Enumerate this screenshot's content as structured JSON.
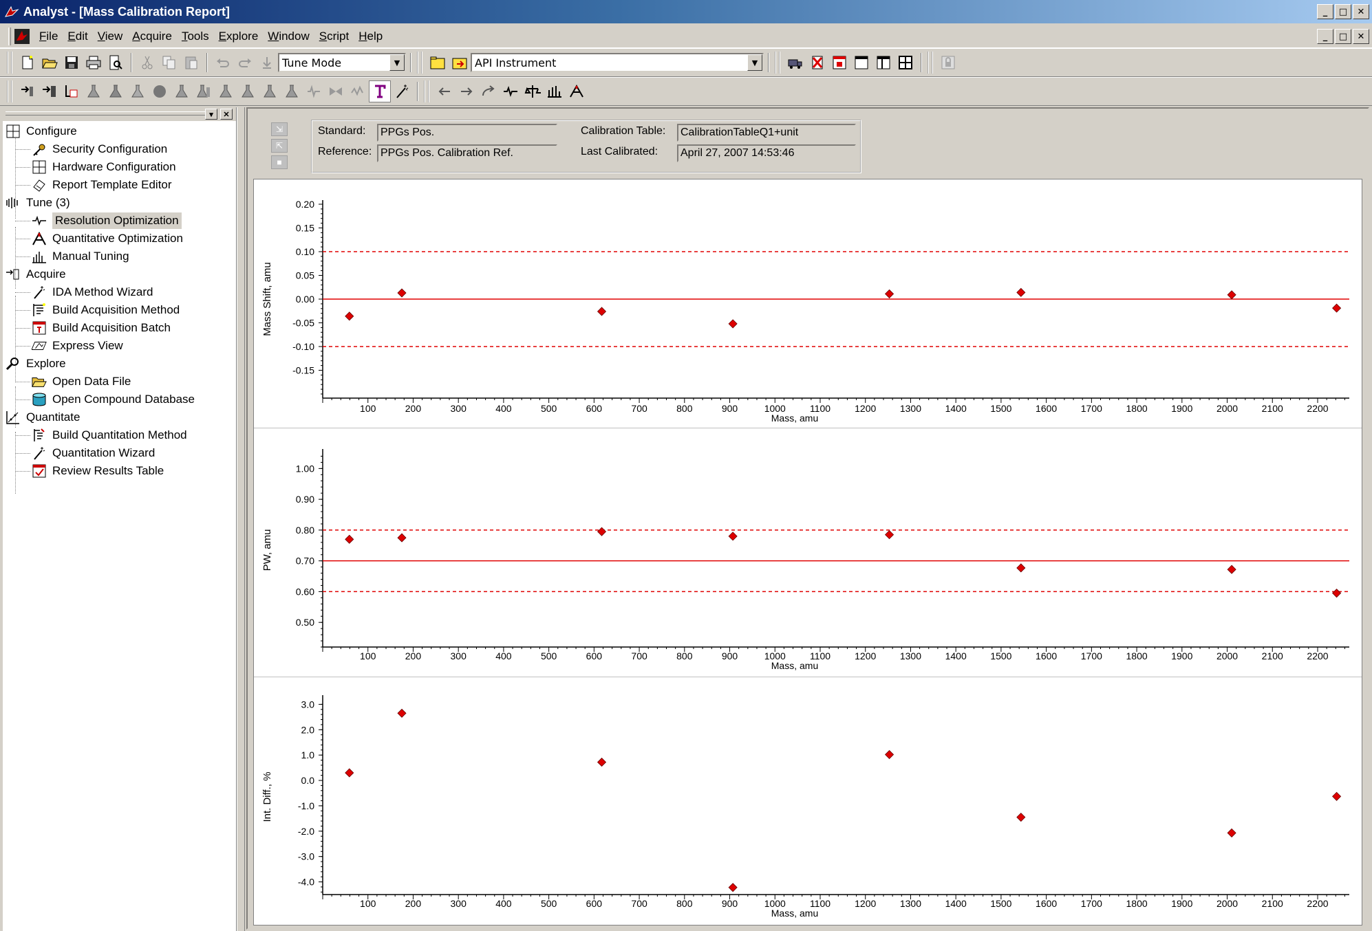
{
  "window": {
    "title": "Analyst - [Mass Calibration Report]",
    "minimize": "_",
    "restore": "□",
    "close": "✕"
  },
  "menu": [
    "File",
    "Edit",
    "View",
    "Acquire",
    "Tools",
    "Explore",
    "Window",
    "Script",
    "Help"
  ],
  "toolbar": {
    "mode_value": "Tune Mode",
    "instrument_value": "API Instrument"
  },
  "tree": {
    "configure": "Configure",
    "security_configuration": "Security Configuration",
    "hardware_configuration": "Hardware Configuration",
    "report_template_editor": "Report Template Editor",
    "tune": "Tune  (3)",
    "resolution_optimization": "Resolution Optimization",
    "quantitative_optimization": "Quantitative Optimization",
    "manual_tuning": "Manual Tuning",
    "acquire": "Acquire",
    "ida_method_wizard": "IDA Method Wizard",
    "build_acquisition_method": "Build Acquisition Method",
    "build_acquisition_batch": "Build Acquisition Batch",
    "express_view": "Express View",
    "explore": "Explore",
    "open_data_file": "Open Data File",
    "open_compound_database": "Open Compound Database",
    "quantitate": "Quantitate",
    "build_quantitation_method": "Build Quantitation Method",
    "quantitation_wizard": "Quantitation Wizard",
    "review_results_table": "Review Results Table"
  },
  "report_info": {
    "standard_label": "Standard:",
    "standard_value": "PPGs Pos.",
    "reference_label": "Reference:",
    "reference_value": "PPGs Pos. Calibration Ref.",
    "calibration_table_label": "Calibration Table:",
    "calibration_table_value": "CalibrationTableQ1+unit",
    "last_calibrated_label": "Last Calibrated:",
    "last_calibrated_value": "April 27, 2007 14:53:46"
  },
  "colors": {
    "marker": "#dd0000",
    "reference_line": "#e00000",
    "title_bar_start": "#0a246a"
  },
  "chart_data": [
    {
      "type": "scatter",
      "xlabel": "Mass, amu",
      "ylabel": "Mass Shift, amu",
      "xlim": [
        0,
        2270
      ],
      "ylim": [
        -0.2,
        0.2
      ],
      "xticks": [
        100,
        200,
        300,
        400,
        500,
        600,
        700,
        800,
        900,
        1000,
        1100,
        1200,
        1300,
        1400,
        1500,
        1600,
        1700,
        1800,
        1900,
        2000,
        2100,
        2200
      ],
      "yticks": [
        -0.15,
        -0.1,
        -0.05,
        0.0,
        0.05,
        0.1,
        0.15,
        0.2
      ],
      "ytick_labels": [
        "-0.15",
        "-0.10",
        "-0.05",
        "0.00",
        "0.05",
        "0.10",
        "0.15",
        "0.20"
      ],
      "reference_line": 0.0,
      "limit_lines": [
        0.1,
        -0.1
      ],
      "x": [
        59,
        175,
        617,
        907,
        1253,
        1544,
        2010,
        2242
      ],
      "y": [
        -0.036,
        0.013,
        -0.026,
        -0.052,
        0.011,
        0.014,
        0.009,
        -0.019
      ]
    },
    {
      "type": "scatter",
      "xlabel": "Mass, amu",
      "ylabel": "PW, amu",
      "xlim": [
        0,
        2270
      ],
      "ylim": [
        0.42,
        1.05
      ],
      "xticks": [
        100,
        200,
        300,
        400,
        500,
        600,
        700,
        800,
        900,
        1000,
        1100,
        1200,
        1300,
        1400,
        1500,
        1600,
        1700,
        1800,
        1900,
        2000,
        2100,
        2200
      ],
      "yticks": [
        0.5,
        0.6,
        0.7,
        0.8,
        0.9,
        1.0
      ],
      "ytick_labels": [
        "0.50",
        "0.60",
        "0.70",
        "0.80",
        "0.90",
        "1.00"
      ],
      "reference_line": 0.7,
      "limit_lines": [
        0.8,
        0.6
      ],
      "x": [
        59,
        175,
        617,
        907,
        1253,
        1544,
        2010,
        2242
      ],
      "y": [
        0.77,
        0.775,
        0.795,
        0.78,
        0.785,
        0.677,
        0.672,
        0.595
      ]
    },
    {
      "type": "scatter",
      "xlabel": "Mass, amu",
      "ylabel": "Int. Diff., %",
      "xlim": [
        0,
        2270
      ],
      "ylim": [
        -4.5,
        3.2
      ],
      "xticks": [
        100,
        200,
        300,
        400,
        500,
        600,
        700,
        800,
        900,
        1000,
        1100,
        1200,
        1300,
        1400,
        1500,
        1600,
        1700,
        1800,
        1900,
        2000,
        2100,
        2200
      ],
      "yticks": [
        -4.0,
        -3.0,
        -2.0,
        -1.0,
        0.0,
        1.0,
        2.0,
        3.0
      ],
      "ytick_labels": [
        "-4.0",
        "-3.0",
        "-2.0",
        "-1.0",
        "0.0",
        "1.0",
        "2.0",
        "3.0"
      ],
      "x": [
        59,
        175,
        617,
        907,
        1253,
        1544,
        2010,
        2242
      ],
      "y": [
        0.3,
        2.65,
        0.72,
        -4.22,
        1.02,
        -1.45,
        -2.07,
        -0.63
      ]
    }
  ]
}
